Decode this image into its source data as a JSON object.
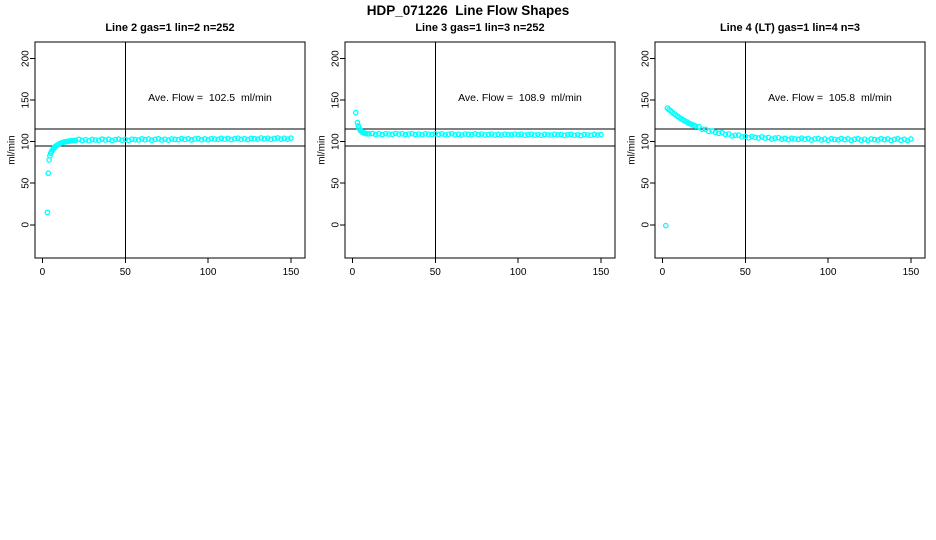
{
  "title": "HDP_071226  Line Flow Shapes",
  "y_axis_label": "ml/min",
  "colors": {
    "marker": "#00ffff",
    "axis": "#000000",
    "background": "#ffffff"
  },
  "axes": {
    "x_ticks": [
      0,
      50,
      100,
      150
    ],
    "y_ticks": [
      0,
      50,
      100,
      150,
      200
    ],
    "x_range": [
      -4.5,
      158.5
    ],
    "y_range": [
      -40,
      220
    ],
    "grid": false
  },
  "ref_lines": {
    "upper": 115,
    "lower": 95,
    "vertical_x": 50
  },
  "chart_data": [
    {
      "type": "scatter",
      "title": "Line 2 gas=1 lin=2 n=252",
      "annotation": "Ave. Flow =  102.5  ml/min",
      "ave_flow": 102.5,
      "n": 252,
      "points": [
        [
          3,
          15
        ],
        [
          3.5,
          62
        ],
        [
          4,
          78
        ],
        [
          4.5,
          83
        ],
        [
          5,
          86
        ],
        [
          5.5,
          88.3
        ],
        [
          6,
          90
        ],
        [
          6.5,
          91.4
        ],
        [
          7,
          92.5
        ],
        [
          7.5,
          93.6
        ],
        [
          8,
          94.5
        ],
        [
          9,
          96
        ],
        [
          10,
          97.2
        ],
        [
          11,
          98.2
        ],
        [
          12,
          98.9
        ],
        [
          13,
          99.5
        ],
        [
          14,
          100
        ],
        [
          15,
          100.4
        ],
        [
          16,
          100.7
        ],
        [
          17,
          101
        ],
        [
          18,
          101.2
        ],
        [
          19,
          101.4
        ],
        [
          20,
          101.6
        ],
        [
          22,
          102.8
        ],
        [
          24,
          101.4
        ],
        [
          26,
          102.4
        ],
        [
          28,
          101.2
        ],
        [
          30,
          102.6
        ],
        [
          32,
          102.1
        ],
        [
          34,
          101.8
        ],
        [
          36,
          103.1
        ],
        [
          38,
          102
        ],
        [
          40,
          102.9
        ],
        [
          42,
          101.5
        ],
        [
          44,
          102.5
        ],
        [
          46,
          103.1
        ],
        [
          48,
          101.8
        ],
        [
          50,
          102.7
        ],
        [
          52,
          101.5
        ],
        [
          54,
          103
        ],
        [
          56,
          102.5
        ],
        [
          58,
          102.1
        ],
        [
          60,
          103.4
        ],
        [
          62,
          102.4
        ],
        [
          64,
          103.2
        ],
        [
          66,
          101.8
        ],
        [
          68,
          102.8
        ],
        [
          70,
          103.5
        ],
        [
          72,
          102.1
        ],
        [
          74,
          103
        ],
        [
          76,
          101.9
        ],
        [
          78,
          103.3
        ],
        [
          80,
          102.8
        ],
        [
          82,
          102.4
        ],
        [
          84,
          103.8
        ],
        [
          86,
          102.7
        ],
        [
          88,
          103.5
        ],
        [
          90,
          102.2
        ],
        [
          92,
          103.2
        ],
        [
          94,
          103.8
        ],
        [
          96,
          102.4
        ],
        [
          98,
          103.4
        ],
        [
          100,
          102.2
        ],
        [
          102,
          103.6
        ],
        [
          104,
          103.2
        ],
        [
          106,
          102.8
        ],
        [
          108,
          104.1
        ],
        [
          110,
          103
        ],
        [
          112,
          103.9
        ],
        [
          114,
          102.5
        ],
        [
          116,
          103.5
        ],
        [
          118,
          104.2
        ],
        [
          120,
          102.8
        ],
        [
          122,
          103.7
        ],
        [
          124,
          102.5
        ],
        [
          126,
          104
        ],
        [
          128,
          103.5
        ],
        [
          130,
          103.1
        ],
        [
          132,
          104.5
        ],
        [
          134,
          103.4
        ],
        [
          136,
          104.2
        ],
        [
          138,
          102.8
        ],
        [
          140,
          103.9
        ],
        [
          142,
          104.5
        ],
        [
          144,
          103.1
        ],
        [
          146,
          104.1
        ],
        [
          148,
          102.9
        ],
        [
          150,
          104.3
        ]
      ]
    },
    {
      "type": "scatter",
      "title": "Line 3 gas=1 lin=3 n=252",
      "annotation": "Ave. Flow =  108.9  ml/min",
      "ave_flow": 108.9,
      "n": 252,
      "points": [
        [
          2,
          135
        ],
        [
          3,
          123
        ],
        [
          3.5,
          119
        ],
        [
          4,
          116.5
        ],
        [
          4.5,
          114.5
        ],
        [
          5,
          113.2
        ],
        [
          5.5,
          112.2
        ],
        [
          6,
          111.4
        ],
        [
          6.5,
          110.9
        ],
        [
          7,
          110.5
        ],
        [
          8,
          109.9
        ],
        [
          9,
          109.6
        ],
        [
          10,
          109.4
        ],
        [
          12,
          109.9
        ],
        [
          14,
          108.8
        ],
        [
          16,
          109.5
        ],
        [
          18,
          108.5
        ],
        [
          20,
          109.6
        ],
        [
          22,
          109.2
        ],
        [
          24,
          108.9
        ],
        [
          26,
          109.9
        ],
        [
          28,
          109.1
        ],
        [
          30,
          109.6
        ],
        [
          32,
          108.5
        ],
        [
          34,
          109.2
        ],
        [
          36,
          109.7
        ],
        [
          38,
          108.6
        ],
        [
          40,
          109.2
        ],
        [
          42,
          108.3
        ],
        [
          44,
          109.4
        ],
        [
          46,
          109
        ],
        [
          48,
          108.7
        ],
        [
          50,
          109.6
        ],
        [
          52,
          108.8
        ],
        [
          54,
          109.4
        ],
        [
          56,
          108.3
        ],
        [
          58,
          109
        ],
        [
          60,
          109.5
        ],
        [
          62,
          108.3
        ],
        [
          64,
          109
        ],
        [
          66,
          108.1
        ],
        [
          68,
          109.2
        ],
        [
          70,
          108.8
        ],
        [
          72,
          108.4
        ],
        [
          74,
          109.4
        ],
        [
          76,
          108.6
        ],
        [
          78,
          109.2
        ],
        [
          80,
          108.1
        ],
        [
          82,
          108.7
        ],
        [
          84,
          109.2
        ],
        [
          86,
          108.1
        ],
        [
          88,
          108.8
        ],
        [
          90,
          107.9
        ],
        [
          92,
          109
        ],
        [
          94,
          108.5
        ],
        [
          96,
          108.2
        ],
        [
          98,
          109.2
        ],
        [
          100,
          108.4
        ],
        [
          102,
          109
        ],
        [
          104,
          107.8
        ],
        [
          106,
          108.5
        ],
        [
          108,
          109
        ],
        [
          110,
          107.9
        ],
        [
          112,
          108.6
        ],
        [
          114,
          107.7
        ],
        [
          116,
          108.7
        ],
        [
          118,
          108.3
        ],
        [
          120,
          108
        ],
        [
          122,
          109
        ],
        [
          124,
          108.2
        ],
        [
          126,
          108.7
        ],
        [
          128,
          107.6
        ],
        [
          130,
          108.3
        ],
        [
          132,
          108.8
        ],
        [
          134,
          107.7
        ],
        [
          136,
          108.3
        ],
        [
          138,
          107.4
        ],
        [
          140,
          108.5
        ],
        [
          142,
          108.1
        ],
        [
          144,
          107.8
        ],
        [
          146,
          108.8
        ],
        [
          148,
          107.9
        ],
        [
          150,
          108.5
        ]
      ]
    },
    {
      "type": "scatter",
      "title": "Line 4 (LT) gas=1 lin=4 n=3",
      "annotation": "Ave. Flow =  105.8  ml/min",
      "ave_flow": 105.8,
      "n": 3,
      "points": [
        [
          2,
          -1
        ],
        [
          3,
          140.5
        ],
        [
          4,
          138.6
        ],
        [
          5,
          136.9
        ],
        [
          6,
          135.2
        ],
        [
          7,
          133.6
        ],
        [
          8,
          132.1
        ],
        [
          9,
          130.7
        ],
        [
          10,
          129.3
        ],
        [
          11,
          128
        ],
        [
          12,
          126.7
        ],
        [
          13,
          125.6
        ],
        [
          14,
          124.4
        ],
        [
          15,
          123.4
        ],
        [
          16,
          122.3
        ],
        [
          17,
          121.4
        ],
        [
          18,
          120.4
        ],
        [
          19,
          119.6
        ],
        [
          20,
          118.7
        ],
        [
          22,
          118.2
        ],
        [
          24,
          115
        ],
        [
          26,
          114.9
        ],
        [
          28,
          112.3
        ],
        [
          30,
          113.1
        ],
        [
          32,
          111.4
        ],
        [
          34,
          110.1
        ],
        [
          36,
          110.9
        ],
        [
          38,
          108.9
        ],
        [
          40,
          109.3
        ],
        [
          42,
          106.9
        ],
        [
          44,
          107.7
        ],
        [
          46,
          107.9
        ],
        [
          48,
          105.7
        ],
        [
          50,
          106.5
        ],
        [
          52,
          104.7
        ],
        [
          54,
          106.2
        ],
        [
          56,
          105.2
        ],
        [
          58,
          104.4
        ],
        [
          60,
          105.8
        ],
        [
          62,
          104.3
        ],
        [
          64,
          105.1
        ],
        [
          66,
          103.1
        ],
        [
          68,
          104.3
        ],
        [
          70,
          104.8
        ],
        [
          72,
          102.9
        ],
        [
          74,
          104
        ],
        [
          76,
          102.4
        ],
        [
          78,
          104.1
        ],
        [
          80,
          103.3
        ],
        [
          82,
          102.8
        ],
        [
          84,
          104.3
        ],
        [
          86,
          102.9
        ],
        [
          88,
          103.9
        ],
        [
          90,
          102
        ],
        [
          92,
          103.3
        ],
        [
          94,
          103.9
        ],
        [
          96,
          102.1
        ],
        [
          98,
          103.2
        ],
        [
          100,
          101.7
        ],
        [
          102,
          103.5
        ],
        [
          104,
          102.7
        ],
        [
          106,
          102.2
        ],
        [
          108,
          103.8
        ],
        [
          110,
          102.5
        ],
        [
          112,
          103.4
        ],
        [
          114,
          101.6
        ],
        [
          116,
          102.9
        ],
        [
          118,
          103.6
        ],
        [
          120,
          101.8
        ],
        [
          122,
          103
        ],
        [
          124,
          101.4
        ],
        [
          126,
          103.2
        ],
        [
          128,
          102.5
        ],
        [
          130,
          102
        ],
        [
          132,
          103.6
        ],
        [
          134,
          102.3
        ],
        [
          136,
          103.3
        ],
        [
          138,
          101.5
        ],
        [
          140,
          102.8
        ],
        [
          142,
          103.5
        ],
        [
          144,
          101.7
        ],
        [
          146,
          102.9
        ],
        [
          148,
          101.3
        ],
        [
          150,
          103.2
        ]
      ]
    }
  ]
}
